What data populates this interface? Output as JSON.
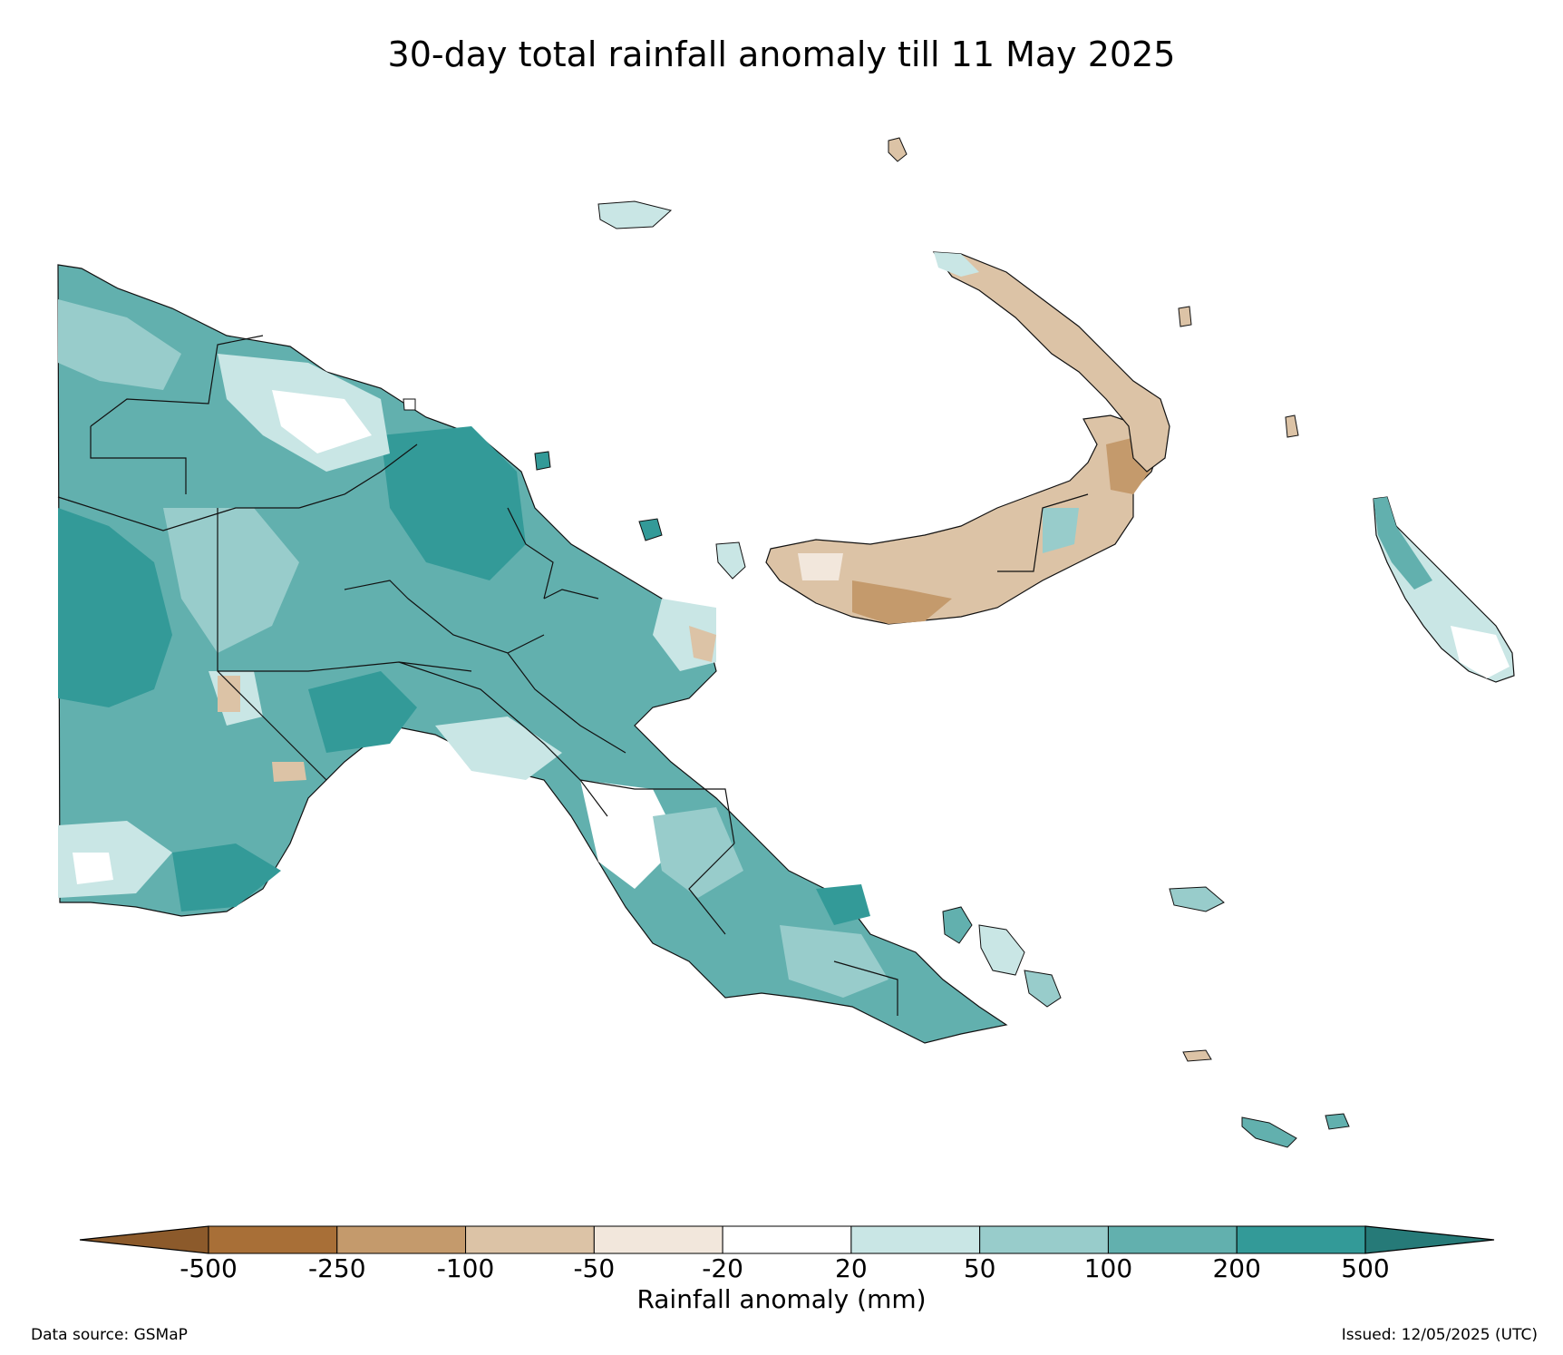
{
  "title": "30-day total rainfall anomaly till 11 May 2025",
  "colorbar": {
    "label": "Rainfall anomaly (mm)",
    "ticks": [
      "-500",
      "-250",
      "-100",
      "-50",
      "-20",
      "20",
      "50",
      "100",
      "200",
      "500"
    ],
    "colors": [
      "#a86f37",
      "#c49a6c",
      "#dcc3a6",
      "#f2e7dc",
      "#ffffff",
      "#c9e6e5",
      "#98cccb",
      "#62b0ae",
      "#339a98"
    ],
    "extend_low_color": "#8c5a2b",
    "extend_high_color": "#267a78"
  },
  "footer": {
    "source": "Data source: GSMaP",
    "issued": "Issued: 12/05/2025 (UTC)"
  }
}
